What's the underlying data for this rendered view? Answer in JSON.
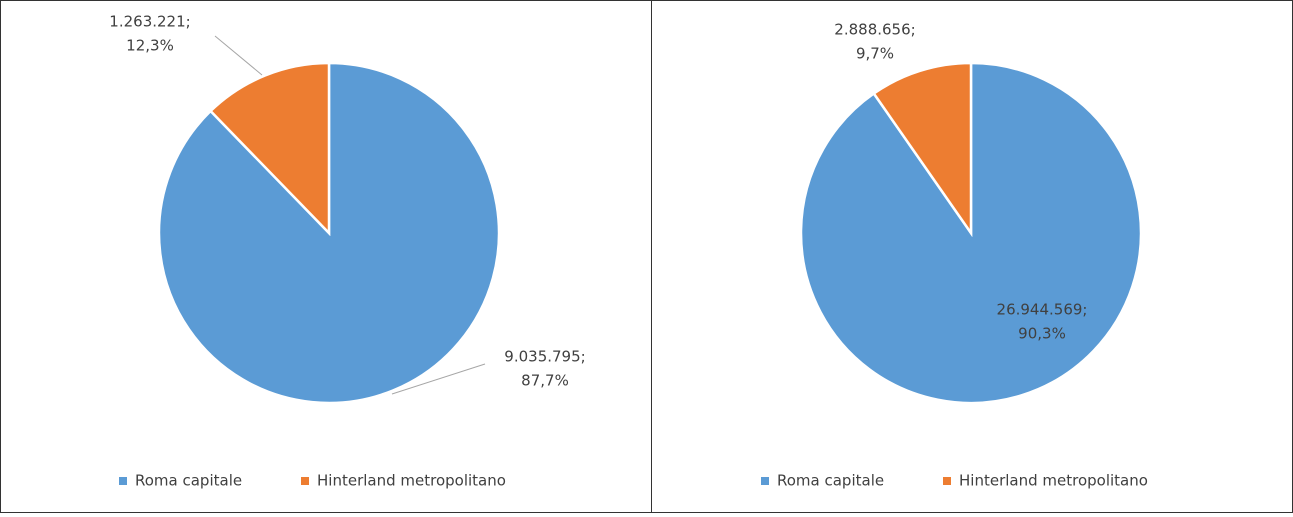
{
  "chart_data": [
    {
      "type": "pie",
      "categories": [
        "Roma capitale",
        "Hinterland metropolitano"
      ],
      "colors": [
        "#5b9bd5",
        "#ed7d31"
      ],
      "values": [
        9035795,
        1263221
      ],
      "value_labels": [
        "9.035.795;",
        "1.263.221;"
      ],
      "percent": [
        87.7,
        12.3
      ],
      "percent_labels": [
        "87,7%",
        "12,3%"
      ],
      "legend": "bottom"
    },
    {
      "type": "pie",
      "categories": [
        "Roma capitale",
        "Hinterland metropolitano"
      ],
      "colors": [
        "#5b9bd5",
        "#ed7d31"
      ],
      "values": [
        26944569,
        2888656
      ],
      "value_labels": [
        "26.944.569;",
        "2.888.656;"
      ],
      "percent": [
        90.3,
        9.7
      ],
      "percent_labels": [
        "90,3%",
        "9,7%"
      ],
      "legend": "bottom"
    }
  ]
}
